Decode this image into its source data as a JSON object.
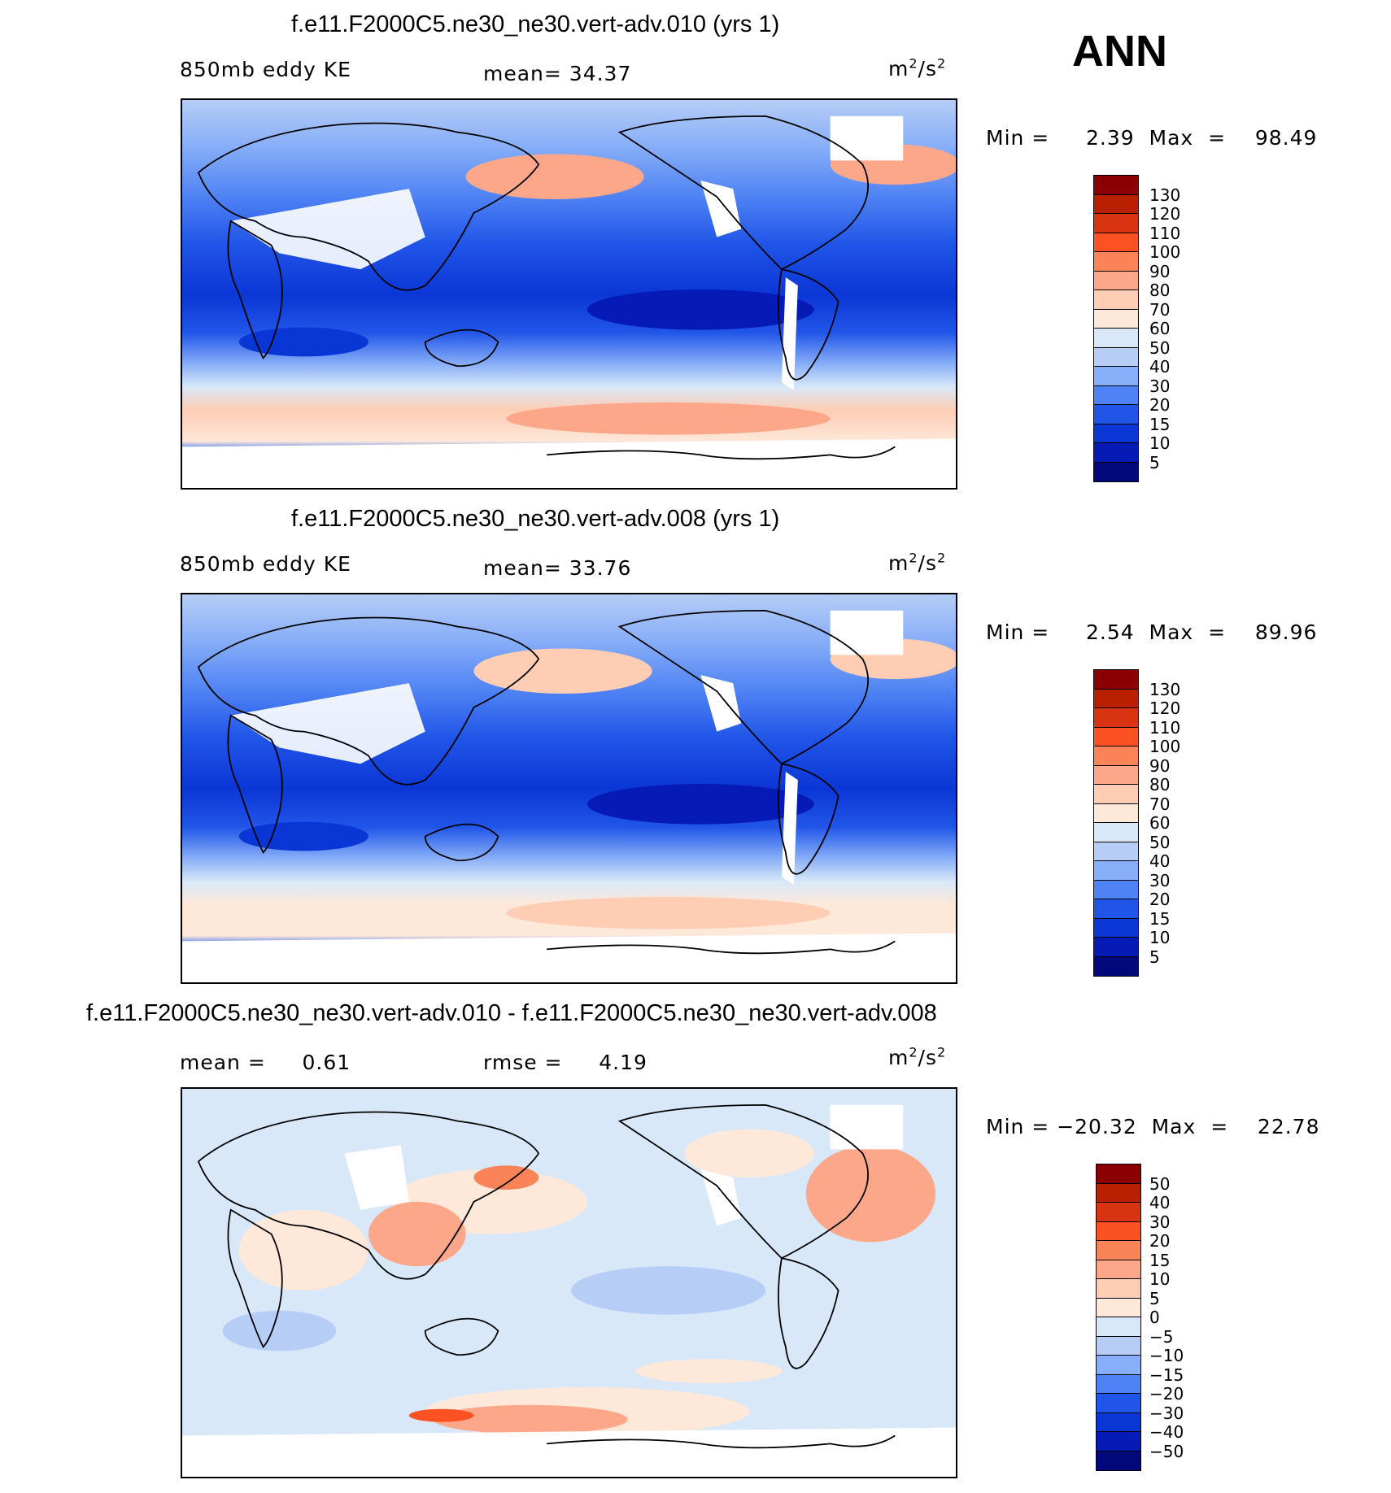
{
  "season": "ANN",
  "units_prefix": "m",
  "units_exp": "2",
  "units_mid": "/s",
  "panels": [
    {
      "title": "f.e11.F2000C5.ne30_ne30.vert-adv.010 (yrs 1)",
      "left_label": "850mb eddy KE",
      "center_label": "mean=   34.37",
      "stats": "Min =     2.39  Max  =    98.49",
      "levels": [
        "130",
        "120",
        "110",
        "100",
        "90",
        "80",
        "70",
        "60",
        "50",
        "40",
        "30",
        "20",
        "15",
        "10",
        "5"
      ]
    },
    {
      "title": "f.e11.F2000C5.ne30_ne30.vert-adv.008 (yrs 1)",
      "left_label": "850mb eddy KE",
      "center_label": "mean=   33.76",
      "stats": "Min =     2.54  Max  =    89.96",
      "levels": [
        "130",
        "120",
        "110",
        "100",
        "90",
        "80",
        "70",
        "60",
        "50",
        "40",
        "30",
        "20",
        "15",
        "10",
        "5"
      ]
    },
    {
      "title": "f.e11.F2000C5.ne30_ne30.vert-adv.010 - f.e11.F2000C5.ne30_ne30.vert-adv.008",
      "left_label": "mean =     0.61",
      "center_label": "rmse =     4.19",
      "stats": "Min = −20.32  Max  =    22.78",
      "levels": [
        "50",
        "40",
        "30",
        "20",
        "15",
        "10",
        "5",
        "0",
        "−5",
        "−10",
        "−15",
        "−20",
        "−30",
        "−40",
        "−50"
      ]
    }
  ],
  "colors": {
    "scale": [
      "#8b0000",
      "#b82000",
      "#d93412",
      "#fb5123",
      "#fb8358",
      "#fca78a",
      "#fecdb4",
      "#fee8da",
      "#d9e8f8",
      "#b6cdf6",
      "#87aef8",
      "#4f82f4",
      "#2155e8",
      "#0b36d6",
      "#061ab6",
      "#00087a"
    ]
  }
}
